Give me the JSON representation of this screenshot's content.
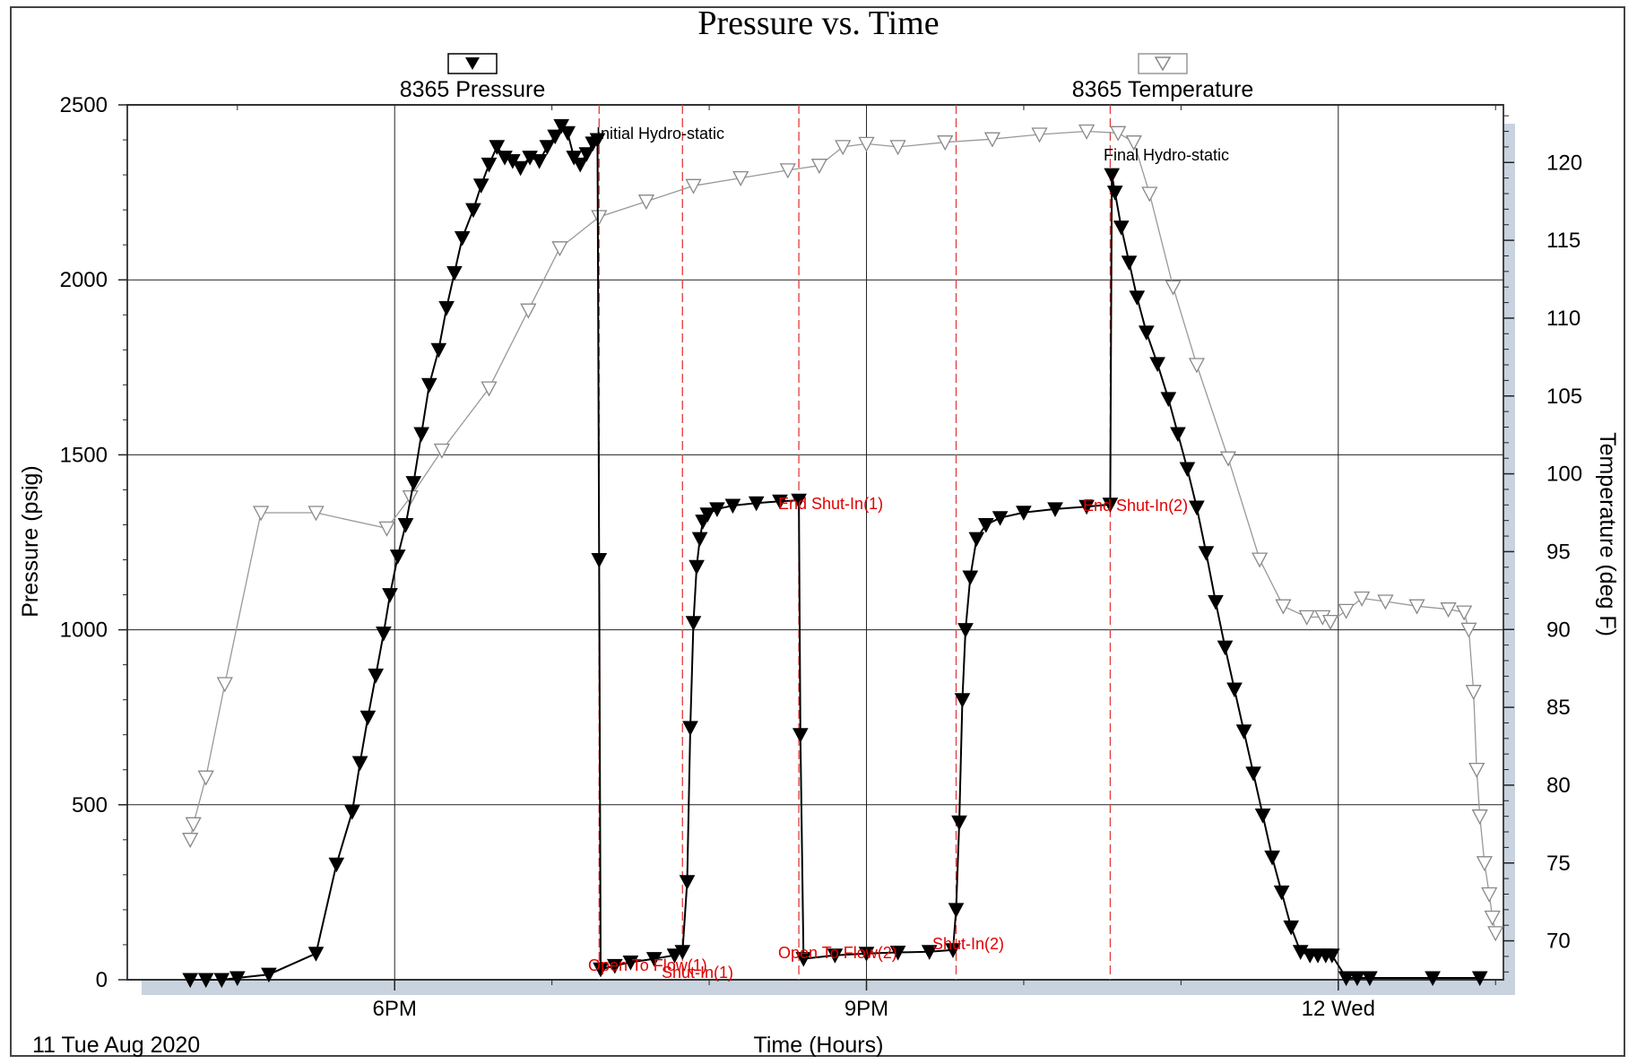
{
  "chart_data": {
    "type": "scatter",
    "title": "Pressure vs. Time",
    "xlabel": "Time (Hours)",
    "ylabel": "Pressure (psig)",
    "y2label": "Temperature (deg F)",
    "date_label": "11 Tue Aug 2020",
    "xlim": [
      16.3,
      25.05
    ],
    "ylim": [
      0,
      2500
    ],
    "y2lim": [
      67.5,
      123.7
    ],
    "x_ticks": [
      {
        "value": 18,
        "label": "6PM"
      },
      {
        "value": 21,
        "label": "9PM"
      },
      {
        "value": 24,
        "label": "12 Wed"
      }
    ],
    "y_ticks": [
      0,
      500,
      1000,
      1500,
      2000,
      2500
    ],
    "y2_ticks": [
      70,
      75,
      80,
      85,
      90,
      95,
      100,
      105,
      110,
      115,
      120
    ],
    "grid": true,
    "legend_placement": "top",
    "event_lines": [
      19.3,
      19.83,
      20.57,
      21.57,
      22.55
    ],
    "series": [
      {
        "name": "8365 Pressure",
        "axis": "left",
        "marker": "filled-down-triangle",
        "color": "#000000",
        "x": [
          16.7,
          16.8,
          16.9,
          17.0,
          17.2,
          17.5,
          17.63,
          17.73,
          17.78,
          17.83,
          17.88,
          17.93,
          17.97,
          18.02,
          18.07,
          18.12,
          18.17,
          18.22,
          18.28,
          18.33,
          18.38,
          18.43,
          18.5,
          18.55,
          18.6,
          18.65,
          18.7,
          18.75,
          18.8,
          18.86,
          18.92,
          18.97,
          19.02,
          19.06,
          19.1,
          19.14,
          19.18,
          19.22,
          19.26,
          19.29,
          19.3,
          19.31,
          19.4,
          19.5,
          19.65,
          19.78,
          19.83,
          19.86,
          19.88,
          19.9,
          19.92,
          19.94,
          19.96,
          19.99,
          20.05,
          20.15,
          20.3,
          20.45,
          20.57,
          20.58,
          20.6,
          20.8,
          21.0,
          21.2,
          21.4,
          21.55,
          21.57,
          21.59,
          21.61,
          21.63,
          21.66,
          21.7,
          21.76,
          21.85,
          22.0,
          22.2,
          22.4,
          22.55,
          22.56,
          22.58,
          22.62,
          22.67,
          22.72,
          22.78,
          22.85,
          22.92,
          22.98,
          23.04,
          23.1,
          23.16,
          23.22,
          23.28,
          23.34,
          23.4,
          23.46,
          23.52,
          23.58,
          23.64,
          23.7,
          23.76,
          23.82,
          23.87,
          23.92,
          23.96,
          24.05,
          24.12,
          24.2,
          24.6,
          24.9
        ],
        "y": [
          0,
          0,
          0,
          5,
          15,
          75,
          330,
          480,
          620,
          750,
          870,
          990,
          1100,
          1210,
          1300,
          1420,
          1560,
          1700,
          1800,
          1920,
          2020,
          2120,
          2200,
          2270,
          2330,
          2380,
          2350,
          2340,
          2320,
          2350,
          2340,
          2380,
          2410,
          2440,
          2420,
          2350,
          2330,
          2360,
          2390,
          2400,
          1200,
          30,
          40,
          50,
          60,
          70,
          80,
          280,
          720,
          1020,
          1180,
          1260,
          1310,
          1330,
          1345,
          1355,
          1362,
          1367,
          1370,
          700,
          60,
          70,
          75,
          78,
          80,
          85,
          200,
          450,
          800,
          1000,
          1150,
          1260,
          1300,
          1320,
          1335,
          1345,
          1352,
          1358,
          2300,
          2250,
          2150,
          2050,
          1950,
          1850,
          1760,
          1660,
          1560,
          1460,
          1350,
          1220,
          1080,
          950,
          830,
          710,
          590,
          470,
          350,
          250,
          150,
          80,
          70,
          70,
          70,
          70,
          5,
          5,
          5,
          5,
          5
        ]
      },
      {
        "name": "8365 Temperature",
        "axis": "right",
        "marker": "hollow-down-triangle",
        "color": "#888888",
        "x": [
          16.7,
          16.72,
          16.8,
          16.92,
          17.15,
          17.5,
          17.95,
          18.1,
          18.3,
          18.6,
          18.85,
          19.05,
          19.3,
          19.6,
          19.9,
          20.2,
          20.5,
          20.7,
          20.85,
          21.0,
          21.2,
          21.5,
          21.8,
          22.1,
          22.4,
          22.6,
          22.7,
          22.8,
          22.95,
          23.1,
          23.3,
          23.5,
          23.65,
          23.8,
          23.9,
          23.95,
          24.05,
          24.15,
          24.3,
          24.5,
          24.7,
          24.8,
          24.83,
          24.86,
          24.88,
          24.9,
          24.93,
          24.96,
          24.98,
          25.0
        ],
        "y": [
          76.5,
          77.5,
          80.5,
          86.5,
          97.5,
          97.5,
          96.5,
          98.5,
          101.5,
          105.5,
          110.5,
          114.5,
          116.5,
          117.5,
          118.5,
          119.0,
          119.5,
          119.8,
          121.0,
          121.2,
          121.0,
          121.3,
          121.5,
          121.8,
          122.0,
          121.9,
          121.3,
          118.0,
          112.0,
          107.0,
          101.0,
          94.5,
          91.5,
          90.8,
          90.8,
          90.5,
          91.2,
          92.0,
          91.8,
          91.5,
          91.3,
          91.1,
          90.0,
          86.0,
          81.0,
          78.0,
          75.0,
          73.0,
          71.5,
          70.5
        ]
      }
    ],
    "annotations": [
      {
        "text": "Initial Hydro-static",
        "color": "#000000"
      },
      {
        "text": "Final Hydro-static",
        "color": "#000000"
      },
      {
        "text": "Open To Flow(1)",
        "color": "#e00000"
      },
      {
        "text": "Shut-In(1)",
        "color": "#e00000"
      },
      {
        "text": "End Shut-In(1)",
        "color": "#e00000"
      },
      {
        "text": "Open To Flow(2)",
        "color": "#e00000"
      },
      {
        "text": "Shut-In(2)",
        "color": "#e00000"
      },
      {
        "text": "End Shut-In(2)",
        "color": "#e00000"
      }
    ]
  }
}
